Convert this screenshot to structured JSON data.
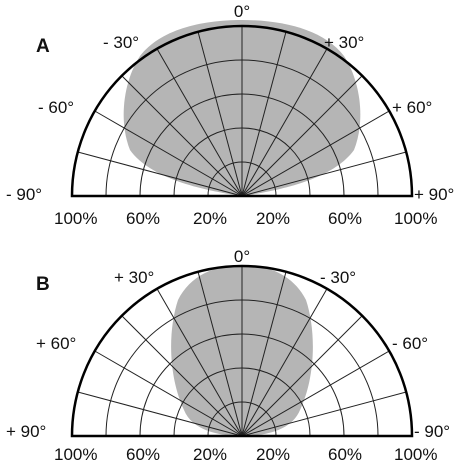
{
  "colors": {
    "lobe_fill": "#b5b5b5",
    "grid_stroke": "#222222",
    "outline_stroke": "#000000",
    "background": "#ffffff"
  },
  "radial_labels": [
    "100%",
    "60%",
    "20%",
    "20%",
    "60%",
    "100%"
  ],
  "panels": [
    {
      "label": "A",
      "angle_labels": {
        "top": "0°",
        "left_30": "- 30°",
        "right_30": "+ 30°",
        "left_60": "- 60°",
        "right_60": "+ 60°",
        "left_90": "- 90°",
        "right_90": "+ 90°"
      },
      "pattern_lobe": "wide"
    },
    {
      "label": "B",
      "angle_labels": {
        "top": "0°",
        "left_30": "+ 30°",
        "right_30": "- 30°",
        "left_60": "+ 60°",
        "right_60": "- 60°",
        "left_90": "+ 90°",
        "right_90": "- 90°"
      },
      "pattern_lobe": "narrow"
    }
  ]
}
